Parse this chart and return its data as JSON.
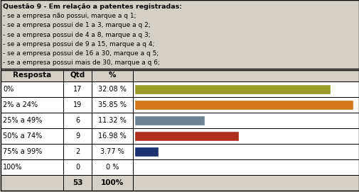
{
  "title_lines": [
    "Questão 9 - Em relação a patentes registradas:",
    "- se a empresa não possui, marque a q 1;",
    "- se a empresa possui de 1 a 3, marque a q 2;",
    "- se a empresa possui de 4 a 8, marque a q 3;",
    "- se a empresa possui de 9 a 15, marque a q 4;",
    "- se a empresa possui de 16 a 30, marque a q 5;",
    "- se a empresa possui mais de 30, marque a q 6;"
  ],
  "headers": [
    "Resposta",
    "Qtd",
    "%",
    ""
  ],
  "rows": [
    {
      "label": "0%",
      "qty": "17",
      "pct": "32.08 %",
      "value": 32.08,
      "color": "#9B9B2A"
    },
    {
      "label": "2% a 24%",
      "qty": "19",
      "pct": "35.85 %",
      "value": 35.85,
      "color": "#D4781E"
    },
    {
      "label": "25% a 49%",
      "qty": "6",
      "pct": "11.32 %",
      "value": 11.32,
      "color": "#6E8494"
    },
    {
      "label": "50% a 74%",
      "qty": "9",
      "pct": "16.98 %",
      "value": 16.98,
      "color": "#B03020"
    },
    {
      "label": "75% a 99%",
      "qty": "2",
      "pct": "3.77 %",
      "value": 3.77,
      "color": "#1C3272"
    },
    {
      "label": "100%",
      "qty": "0",
      "pct": "0 %",
      "value": 0,
      "color": "#888888"
    }
  ],
  "total_qty": "53",
  "total_pct": "100%",
  "bg_color": "#D4D0C8",
  "cell_bg": "#FFFFFF",
  "footer_bg": "#D4D0C8",
  "max_bar_pct": 36.5
}
